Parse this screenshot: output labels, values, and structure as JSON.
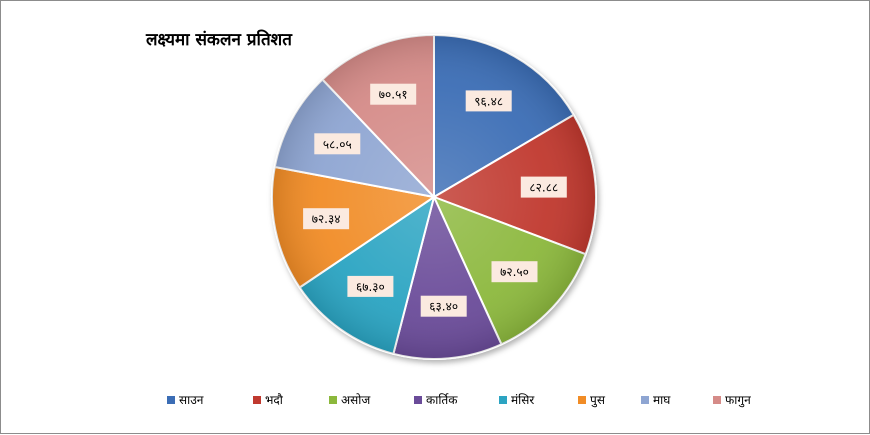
{
  "chart_data": {
    "type": "pie",
    "title": "लक्ष्यमा संकलन प्रतिशत",
    "categories": [
      "साउन",
      "भदौ",
      "असोज",
      "कार्तिक",
      "मंसिर",
      "पुस",
      "माघ",
      "फागुन"
    ],
    "values": [
      96.48,
      82.88,
      72.5,
      63.4,
      67.3,
      72.34,
      58.05,
      70.51
    ],
    "data_labels": [
      "९६.४८",
      "८२.८८",
      "७२.५०",
      "६३.४०",
      "६७.३०",
      "७२.३४",
      "५८.०५",
      "७०.५१"
    ],
    "colors": [
      "#3B6DB5",
      "#C0392F",
      "#8CB83C",
      "#6A4B99",
      "#2CA4C2",
      "#F18C26",
      "#8EA5D2",
      "#D58B88"
    ],
    "legend_position": "bottom",
    "start_angle": "top, clockwise"
  }
}
